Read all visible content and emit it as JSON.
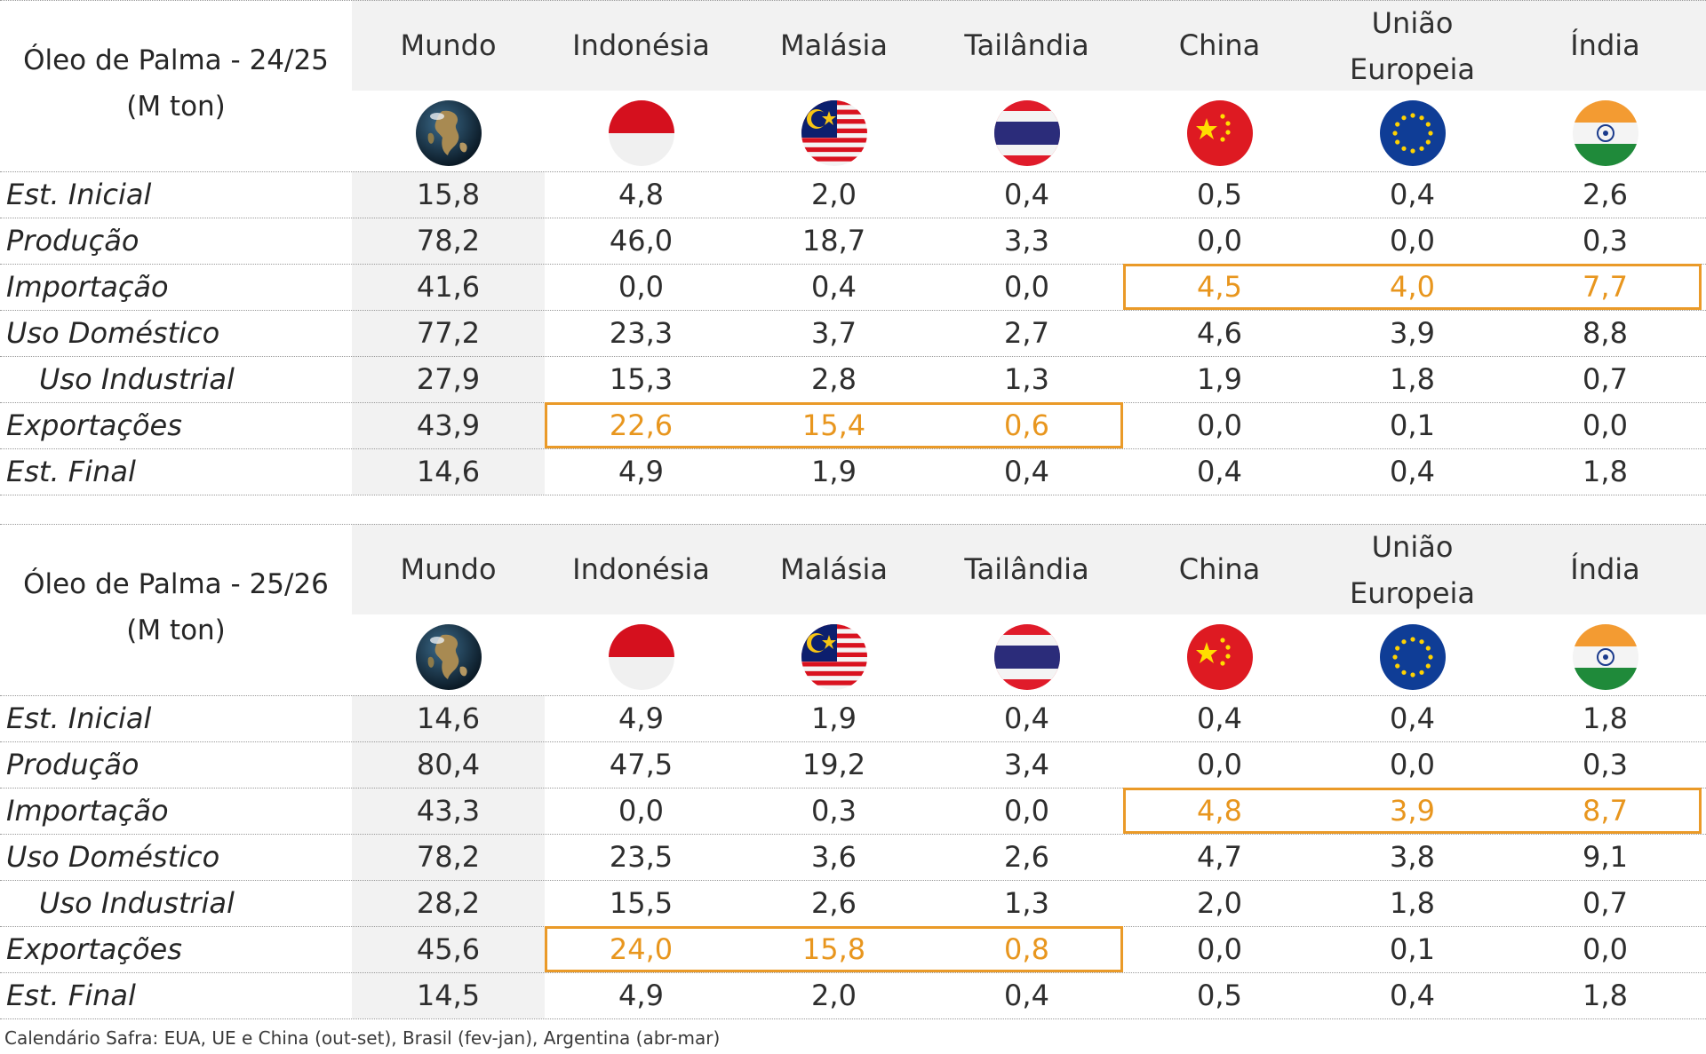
{
  "countries": [
    "Mundo",
    "Indonésia",
    "Malásia",
    "Tailândia",
    "China",
    "União Europeia",
    "Índia"
  ],
  "country_lines": [
    [
      "Mundo"
    ],
    [
      "Indonésia"
    ],
    [
      "Malásia"
    ],
    [
      "Tailândia"
    ],
    [
      "China"
    ],
    [
      "União",
      "Europeia"
    ],
    [
      "Índia"
    ]
  ],
  "flags": [
    "globe-icon",
    "indonesia-flag-icon",
    "malaysia-flag-icon",
    "thailand-flag-icon",
    "china-flag-icon",
    "eu-flag-icon",
    "india-flag-icon"
  ],
  "row_labels": [
    "Est. Inicial",
    "Produção",
    "Importação",
    "Uso Doméstico",
    "Uso Industrial",
    "Exportações",
    "Est. Final"
  ],
  "highlight_color": "#E8961E",
  "tables": [
    {
      "title_line1": "Óleo de Palma - 24/25",
      "title_line2": "(M ton)",
      "rows": [
        [
          "15,8",
          "4,8",
          "2,0",
          "0,4",
          "0,5",
          "0,4",
          "2,6"
        ],
        [
          "78,2",
          "46,0",
          "18,7",
          "3,3",
          "0,0",
          "0,0",
          "0,3"
        ],
        [
          "41,6",
          "0,0",
          "0,4",
          "0,0",
          "4,5",
          "4,0",
          "7,7"
        ],
        [
          "77,2",
          "23,3",
          "3,7",
          "2,7",
          "4,6",
          "3,9",
          "8,8"
        ],
        [
          "27,9",
          "15,3",
          "2,8",
          "1,3",
          "1,9",
          "1,8",
          "0,7"
        ],
        [
          "43,9",
          "22,6",
          "15,4",
          "0,6",
          "0,0",
          "0,1",
          "0,0"
        ],
        [
          "14,6",
          "4,9",
          "1,9",
          "0,4",
          "0,4",
          "0,4",
          "1,8"
        ]
      ]
    },
    {
      "title_line1": "Óleo de Palma - 25/26",
      "title_line2": "(M ton)",
      "rows": [
        [
          "14,6",
          "4,9",
          "1,9",
          "0,4",
          "0,4",
          "0,4",
          "1,8"
        ],
        [
          "80,4",
          "47,5",
          "19,2",
          "3,4",
          "0,0",
          "0,0",
          "0,3"
        ],
        [
          "43,3",
          "0,0",
          "0,3",
          "0,0",
          "4,8",
          "3,9",
          "8,7"
        ],
        [
          "78,2",
          "23,5",
          "3,6",
          "2,6",
          "4,7",
          "3,8",
          "9,1"
        ],
        [
          "28,2",
          "15,5",
          "2,6",
          "1,3",
          "2,0",
          "1,8",
          "0,7"
        ],
        [
          "45,6",
          "24,0",
          "15,8",
          "0,8",
          "0,0",
          "0,1",
          "0,0"
        ],
        [
          "14,5",
          "4,9",
          "2,0",
          "0,4",
          "0,5",
          "0,4",
          "1,8"
        ]
      ]
    }
  ],
  "footer": "Calendário Safra: EUA, UE e China (out-set), Brasil (fev-jan), Argentina (abr-mar)"
}
